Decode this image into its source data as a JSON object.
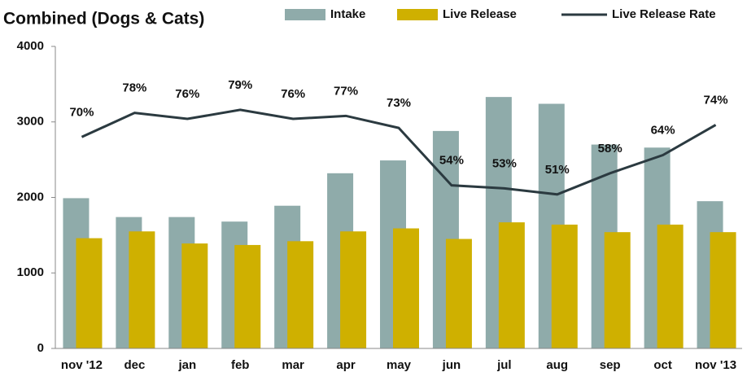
{
  "chart_data": {
    "type": "bar_line",
    "title": "Combined (Dogs & Cats)",
    "categories": [
      "nov '12",
      "dec",
      "jan",
      "feb",
      "mar",
      "apr",
      "may",
      "jun",
      "jul",
      "aug",
      "sep",
      "oct",
      "nov '13"
    ],
    "series": [
      {
        "name": "Intake",
        "type": "bar",
        "color": "#8fabaa",
        "values": [
          1990,
          1740,
          1740,
          1680,
          1890,
          2320,
          2490,
          2880,
          3330,
          3240,
          2700,
          2660,
          1950
        ]
      },
      {
        "name": "Live Release",
        "type": "bar",
        "color": "#cfb000",
        "values": [
          1460,
          1550,
          1390,
          1370,
          1420,
          1550,
          1590,
          1450,
          1670,
          1640,
          1540,
          1640,
          1540
        ]
      },
      {
        "name": "Live Release Rate",
        "type": "line",
        "axis": "y2",
        "color": "#2b3a40",
        "values": [
          70,
          78,
          76,
          79,
          76,
          77,
          73,
          54,
          53,
          51,
          58,
          64,
          74
        ],
        "value_labels": [
          "70%",
          "78%",
          "76%",
          "79%",
          "76%",
          "77%",
          "73%",
          "54%",
          "53%",
          "51%",
          "58%",
          "64%",
          "74%"
        ]
      }
    ],
    "ylim": [
      0,
      4000
    ],
    "yticks": [
      0,
      1000,
      2000,
      3000,
      4000
    ],
    "y2lim": [
      0,
      100
    ],
    "legend": "top",
    "grid": false
  }
}
